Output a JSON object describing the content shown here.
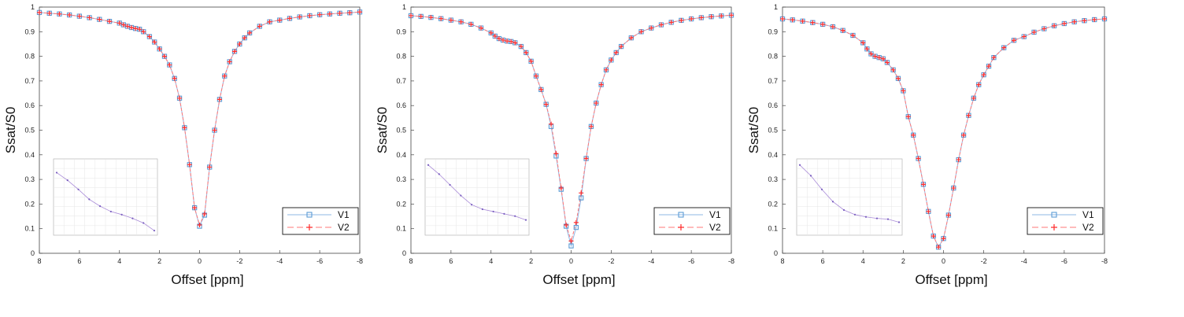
{
  "chart_data": [
    {
      "type": "line",
      "xlabel": "Offset [ppm]",
      "ylabel": "Ssat/S0",
      "xlim": [
        8,
        -8
      ],
      "ylim": [
        0,
        1
      ],
      "x_ticks": [
        "8",
        "6",
        "4",
        "2",
        "0",
        "-2",
        "-4",
        "-6",
        "-8"
      ],
      "y_ticks": [
        "0",
        "0.1",
        "0.2",
        "0.3",
        "0.4",
        "0.5",
        "0.6",
        "0.7",
        "0.8",
        "0.9",
        "1"
      ],
      "x_reversed": true,
      "grid": true,
      "legend": "bottom-right",
      "series": [
        {
          "name": "V1",
          "color": "#5b9bd5",
          "marker": "square",
          "x": [
            8,
            7.5,
            7,
            6.5,
            6,
            5.5,
            5,
            4.5,
            4,
            3.8,
            3.6,
            3.4,
            3.2,
            3,
            2.8,
            2.5,
            2.25,
            2,
            1.75,
            1.5,
            1.25,
            1,
            0.75,
            0.5,
            0.25,
            0,
            -0.25,
            -0.5,
            -0.75,
            -1,
            -1.25,
            -1.5,
            -1.75,
            -2,
            -2.25,
            -2.5,
            -3,
            -3.5,
            -4,
            -4.5,
            -5,
            -5.5,
            -6,
            -6.5,
            -7,
            -7.5,
            -8
          ],
          "y": [
            0.978,
            0.975,
            0.972,
            0.968,
            0.963,
            0.957,
            0.95,
            0.942,
            0.935,
            0.928,
            0.922,
            0.917,
            0.913,
            0.91,
            0.9,
            0.88,
            0.858,
            0.83,
            0.8,
            0.765,
            0.71,
            0.63,
            0.51,
            0.36,
            0.185,
            0.11,
            0.155,
            0.35,
            0.5,
            0.625,
            0.72,
            0.778,
            0.82,
            0.85,
            0.875,
            0.895,
            0.922,
            0.94,
            0.947,
            0.954,
            0.96,
            0.965,
            0.969,
            0.972,
            0.975,
            0.977,
            0.98
          ]
        },
        {
          "name": "V2",
          "color": "#ff2a2a",
          "marker": "plus",
          "x": [
            8,
            7.5,
            7,
            6.5,
            6,
            5.5,
            5,
            4.5,
            4,
            3.8,
            3.6,
            3.4,
            3.2,
            3,
            2.8,
            2.5,
            2.25,
            2,
            1.75,
            1.5,
            1.25,
            1,
            0.75,
            0.5,
            0.25,
            0,
            -0.25,
            -0.5,
            -0.75,
            -1,
            -1.25,
            -1.5,
            -1.75,
            -2,
            -2.25,
            -2.5,
            -3,
            -3.5,
            -4,
            -4.5,
            -5,
            -5.5,
            -6,
            -6.5,
            -7,
            -7.5,
            -8
          ],
          "y": [
            0.978,
            0.975,
            0.972,
            0.968,
            0.963,
            0.957,
            0.95,
            0.942,
            0.935,
            0.928,
            0.922,
            0.917,
            0.913,
            0.91,
            0.9,
            0.88,
            0.858,
            0.83,
            0.8,
            0.765,
            0.71,
            0.63,
            0.51,
            0.36,
            0.185,
            0.115,
            0.16,
            0.35,
            0.5,
            0.625,
            0.72,
            0.778,
            0.82,
            0.85,
            0.875,
            0.895,
            0.922,
            0.94,
            0.947,
            0.954,
            0.96,
            0.965,
            0.969,
            0.972,
            0.975,
            0.977,
            0.98
          ]
        }
      ],
      "inset": {
        "grid": true,
        "values": [
          0.82,
          0.72,
          0.6,
          0.47,
          0.38,
          0.31,
          0.27,
          0.22,
          0.16,
          0.06
        ]
      }
    },
    {
      "type": "line",
      "xlabel": "Offset [ppm]",
      "ylabel": "Ssat/S0",
      "xlim": [
        8,
        -8
      ],
      "ylim": [
        0,
        1
      ],
      "x_ticks": [
        "8",
        "6",
        "4",
        "2",
        "0",
        "-2",
        "-4",
        "-6",
        "-8"
      ],
      "y_ticks": [
        "0",
        "0.1",
        "0.2",
        "0.3",
        "0.4",
        "0.5",
        "0.6",
        "0.7",
        "0.8",
        "0.9",
        "1"
      ],
      "x_reversed": true,
      "grid": true,
      "legend": "bottom-right",
      "series": [
        {
          "name": "V1",
          "color": "#5b9bd5",
          "marker": "square",
          "x": [
            8,
            7.5,
            7,
            6.5,
            6,
            5.5,
            5,
            4.5,
            4,
            3.8,
            3.6,
            3.4,
            3.2,
            3,
            2.8,
            2.5,
            2.25,
            2,
            1.75,
            1.5,
            1.25,
            1,
            0.75,
            0.5,
            0.25,
            0,
            -0.25,
            -0.5,
            -0.75,
            -1,
            -1.25,
            -1.5,
            -1.75,
            -2,
            -2.25,
            -2.5,
            -3,
            -3.5,
            -4,
            -4.5,
            -5,
            -5.5,
            -6,
            -6.5,
            -7,
            -7.5,
            -8
          ],
          "y": [
            0.965,
            0.962,
            0.958,
            0.953,
            0.947,
            0.94,
            0.93,
            0.915,
            0.895,
            0.882,
            0.872,
            0.866,
            0.862,
            0.86,
            0.855,
            0.84,
            0.815,
            0.78,
            0.72,
            0.665,
            0.605,
            0.515,
            0.395,
            0.26,
            0.11,
            0.03,
            0.105,
            0.225,
            0.385,
            0.515,
            0.61,
            0.685,
            0.745,
            0.785,
            0.815,
            0.84,
            0.875,
            0.9,
            0.915,
            0.928,
            0.938,
            0.946,
            0.952,
            0.957,
            0.961,
            0.964,
            0.967
          ]
        },
        {
          "name": "V2",
          "color": "#ff2a2a",
          "marker": "plus",
          "x": [
            8,
            7.5,
            7,
            6.5,
            6,
            5.5,
            5,
            4.5,
            4,
            3.8,
            3.6,
            3.4,
            3.2,
            3,
            2.8,
            2.5,
            2.25,
            2,
            1.75,
            1.5,
            1.25,
            1,
            0.75,
            0.5,
            0.25,
            0,
            -0.25,
            -0.5,
            -0.75,
            -1,
            -1.25,
            -1.5,
            -1.75,
            -2,
            -2.25,
            -2.5,
            -3,
            -3.5,
            -4,
            -4.5,
            -5,
            -5.5,
            -6,
            -6.5,
            -7,
            -7.5,
            -8
          ],
          "y": [
            0.965,
            0.962,
            0.958,
            0.953,
            0.947,
            0.94,
            0.93,
            0.915,
            0.895,
            0.882,
            0.872,
            0.866,
            0.862,
            0.86,
            0.855,
            0.84,
            0.815,
            0.78,
            0.72,
            0.665,
            0.605,
            0.525,
            0.405,
            0.265,
            0.115,
            0.05,
            0.125,
            0.245,
            0.385,
            0.515,
            0.61,
            0.685,
            0.745,
            0.785,
            0.815,
            0.84,
            0.875,
            0.9,
            0.915,
            0.928,
            0.938,
            0.946,
            0.952,
            0.957,
            0.961,
            0.964,
            0.967
          ]
        }
      ],
      "inset": {
        "grid": true,
        "values": [
          0.92,
          0.8,
          0.66,
          0.52,
          0.4,
          0.34,
          0.31,
          0.28,
          0.25,
          0.2
        ]
      }
    },
    {
      "type": "line",
      "xlabel": "Offset [ppm]",
      "ylabel": "Ssat/S0",
      "xlim": [
        8,
        -8
      ],
      "ylim": [
        0,
        1
      ],
      "x_ticks": [
        "8",
        "6",
        "4",
        "2",
        "0",
        "-2",
        "-4",
        "-6",
        "-8"
      ],
      "y_ticks": [
        "0",
        "0.1",
        "0.2",
        "0.3",
        "0.4",
        "0.5",
        "0.6",
        "0.7",
        "0.8",
        "0.9",
        "1"
      ],
      "x_reversed": true,
      "grid": true,
      "legend": "bottom-right",
      "series": [
        {
          "name": "V1",
          "color": "#5b9bd5",
          "marker": "square",
          "x": [
            8,
            7.5,
            7,
            6.5,
            6,
            5.5,
            5,
            4.5,
            4,
            3.8,
            3.6,
            3.4,
            3.2,
            3,
            2.8,
            2.5,
            2.25,
            2,
            1.75,
            1.5,
            1.25,
            1,
            0.75,
            0.5,
            0.25,
            0,
            -0.25,
            -0.5,
            -0.75,
            -1,
            -1.25,
            -1.5,
            -1.75,
            -2,
            -2.25,
            -2.5,
            -3,
            -3.5,
            -4,
            -4.5,
            -5,
            -5.5,
            -6,
            -6.5,
            -7,
            -7.5,
            -8
          ],
          "y": [
            0.952,
            0.948,
            0.943,
            0.937,
            0.93,
            0.92,
            0.905,
            0.885,
            0.855,
            0.83,
            0.81,
            0.8,
            0.795,
            0.79,
            0.775,
            0.745,
            0.71,
            0.66,
            0.555,
            0.48,
            0.385,
            0.28,
            0.17,
            0.07,
            0.025,
            0.06,
            0.155,
            0.265,
            0.38,
            0.48,
            0.56,
            0.63,
            0.685,
            0.725,
            0.76,
            0.795,
            0.835,
            0.865,
            0.88,
            0.898,
            0.912,
            0.924,
            0.933,
            0.94,
            0.945,
            0.949,
            0.952
          ]
        },
        {
          "name": "V2",
          "color": "#ff2a2a",
          "marker": "plus",
          "x": [
            8,
            7.5,
            7,
            6.5,
            6,
            5.5,
            5,
            4.5,
            4,
            3.8,
            3.6,
            3.4,
            3.2,
            3,
            2.8,
            2.5,
            2.25,
            2,
            1.75,
            1.5,
            1.25,
            1,
            0.75,
            0.5,
            0.25,
            0,
            -0.25,
            -0.5,
            -0.75,
            -1,
            -1.25,
            -1.5,
            -1.75,
            -2,
            -2.25,
            -2.5,
            -3,
            -3.5,
            -4,
            -4.5,
            -5,
            -5.5,
            -6,
            -6.5,
            -7,
            -7.5,
            -8
          ],
          "y": [
            0.952,
            0.948,
            0.943,
            0.937,
            0.93,
            0.92,
            0.905,
            0.885,
            0.855,
            0.83,
            0.81,
            0.8,
            0.795,
            0.79,
            0.775,
            0.745,
            0.71,
            0.66,
            0.555,
            0.48,
            0.385,
            0.28,
            0.17,
            0.07,
            0.025,
            0.06,
            0.155,
            0.265,
            0.38,
            0.48,
            0.56,
            0.63,
            0.685,
            0.725,
            0.76,
            0.795,
            0.835,
            0.865,
            0.88,
            0.898,
            0.912,
            0.924,
            0.933,
            0.94,
            0.945,
            0.949,
            0.952
          ]
        }
      ],
      "inset": {
        "grid": true,
        "values": [
          0.92,
          0.78,
          0.6,
          0.44,
          0.33,
          0.27,
          0.24,
          0.22,
          0.21,
          0.17
        ]
      }
    }
  ]
}
